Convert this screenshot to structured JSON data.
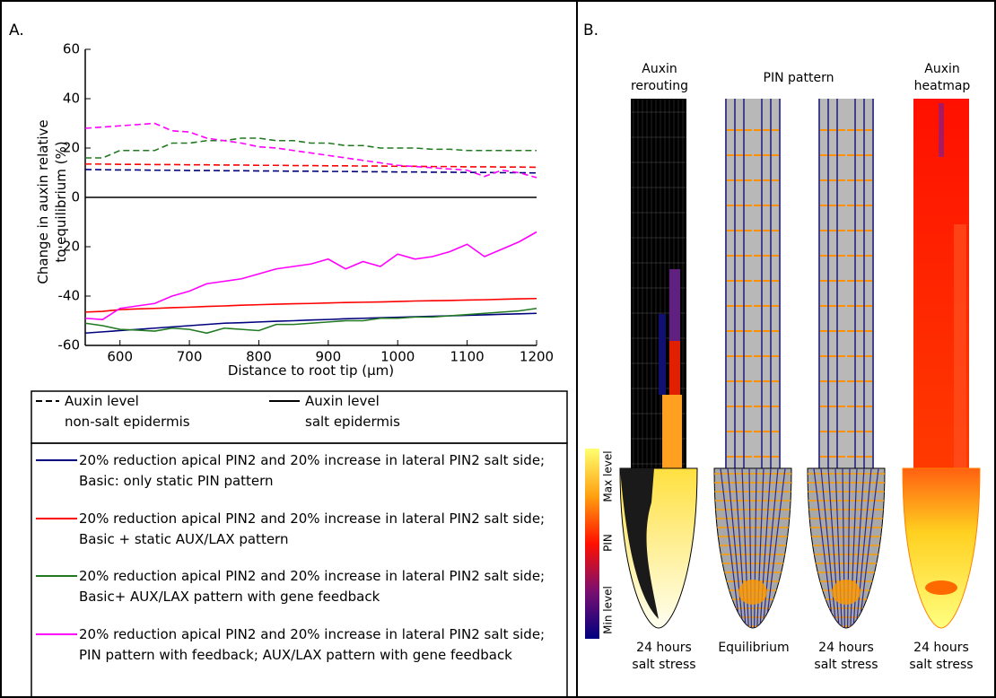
{
  "panel_a": {
    "label": "A."
  },
  "chart_data": {
    "type": "line",
    "ylabel": "Change in auxin relative\nto equilibrium (%)",
    "xlabel": "Distance to root tip (μm)",
    "x": [
      550,
      575,
      600,
      625,
      650,
      675,
      700,
      725,
      750,
      775,
      800,
      825,
      850,
      875,
      900,
      925,
      950,
      975,
      1000,
      1025,
      1050,
      1075,
      1100,
      1125,
      1150,
      1175,
      1200
    ],
    "xlim": [
      550,
      1200
    ],
    "xticks": [
      600,
      700,
      800,
      900,
      1000,
      1100,
      1200
    ],
    "ylim": [
      -60,
      60
    ],
    "yticks": [
      -60,
      -40,
      -20,
      0,
      20,
      40,
      60
    ],
    "zero_line": true,
    "line_styles": [
      {
        "name": "Auxin level\nnon-salt epidermis",
        "style": "dashed"
      },
      {
        "name": "Auxin level\nsalt epidermis",
        "style": "solid"
      }
    ],
    "series": [
      {
        "name": "20% reduction apical PIN2 and 20% increase in lateral PIN2 salt side; Basic: only static PIN pattern",
        "color": "#00007f",
        "non_salt_values": [
          11.3,
          11.2,
          11.1,
          11.1,
          11,
          11,
          10.9,
          10.9,
          10.8,
          10.8,
          10.7,
          10.7,
          10.6,
          10.6,
          10.5,
          10.5,
          10.4,
          10.4,
          10.3,
          10.3,
          10.2,
          10.2,
          10.1,
          10.1,
          10,
          10,
          9.9
        ],
        "salt_values": [
          -55,
          -54.5,
          -54,
          -53.5,
          -53,
          -52.5,
          -52,
          -51.5,
          -51,
          -50.8,
          -50.5,
          -50.2,
          -50,
          -49.7,
          -49.5,
          -49.2,
          -49,
          -48.8,
          -48.6,
          -48.4,
          -48.2,
          -48,
          -47.8,
          -47.6,
          -47.4,
          -47.2,
          -47
        ]
      },
      {
        "name": "20% reduction apical PIN2 and 20% increase in lateral PIN2 salt side; Basic + static AUX/LAX pattern",
        "color": "#ff0000",
        "non_salt_values": [
          13.5,
          13.5,
          13.4,
          13.4,
          13.3,
          13.3,
          13.2,
          13.2,
          13.1,
          13.1,
          13,
          13,
          12.9,
          12.9,
          12.8,
          12.8,
          12.7,
          12.7,
          12.6,
          12.6,
          12.5,
          12.5,
          12.4,
          12.4,
          12.3,
          12.3,
          12.2
        ],
        "salt_values": [
          -46.5,
          -46.2,
          -45.5,
          -45.2,
          -45,
          -44.7,
          -44.5,
          -44.2,
          -44,
          -43.7,
          -43.5,
          -43.3,
          -43.1,
          -43,
          -42.8,
          -42.6,
          -42.5,
          -42.4,
          -42.2,
          -42,
          -41.9,
          -41.8,
          -41.6,
          -41.5,
          -41.3,
          -41.1,
          -41
        ]
      },
      {
        "name": "20% reduction apical PIN2 and 20% increase in lateral PIN2 salt side; Basic+ AUX/LAX pattern with gene feedback",
        "color": "#217a21",
        "non_salt_values": [
          16,
          16,
          19,
          19,
          19,
          22,
          22,
          23,
          23,
          24,
          24,
          23,
          23,
          22,
          22,
          21,
          21,
          20,
          20,
          20,
          19.5,
          19.5,
          19,
          19,
          19,
          19,
          19
        ],
        "salt_values": [
          -51,
          -52,
          -53.5,
          -53.8,
          -54.2,
          -53,
          -53.5,
          -55,
          -53,
          -53.5,
          -54,
          -51.5,
          -51.5,
          -51,
          -50.5,
          -50,
          -50,
          -49,
          -49,
          -48.5,
          -48.5,
          -48,
          -47.5,
          -47,
          -46.5,
          -46,
          -45
        ]
      },
      {
        "name": "20% reduction apical PIN2 and 20% increase in lateral PIN2 salt side; PIN pattern with feedback; AUX/LAX pattern with gene feedback",
        "color": "#ff00ff",
        "non_salt_values": [
          28,
          28.5,
          29,
          29.5,
          30,
          27,
          26.5,
          24,
          23,
          22,
          20.5,
          20,
          19,
          18,
          17,
          16,
          15,
          14,
          13,
          12.5,
          12,
          11.5,
          11,
          8.5,
          11,
          10,
          8
        ],
        "salt_values": [
          -49,
          -49.5,
          -45,
          -44,
          -43,
          -40,
          -38,
          -35,
          -34,
          -33,
          -31,
          -29,
          -28,
          -27,
          -25,
          -29,
          -26,
          -28,
          -23,
          -25,
          -24,
          -22,
          -19,
          -24,
          -21,
          -18,
          -14
        ]
      }
    ]
  },
  "panel_b": {
    "label": "B.",
    "titles": [
      "Auxin\nrerouting",
      "PIN pattern",
      "Auxin\nheatmap"
    ],
    "colorbar": {
      "max": "Max level",
      "mid": "PIN",
      "min": "Min level"
    },
    "captions": [
      "24 hours\nsalt stress",
      "Equilibrium",
      "24 hours\nsalt stress",
      "24 hours\nsalt stress"
    ]
  }
}
